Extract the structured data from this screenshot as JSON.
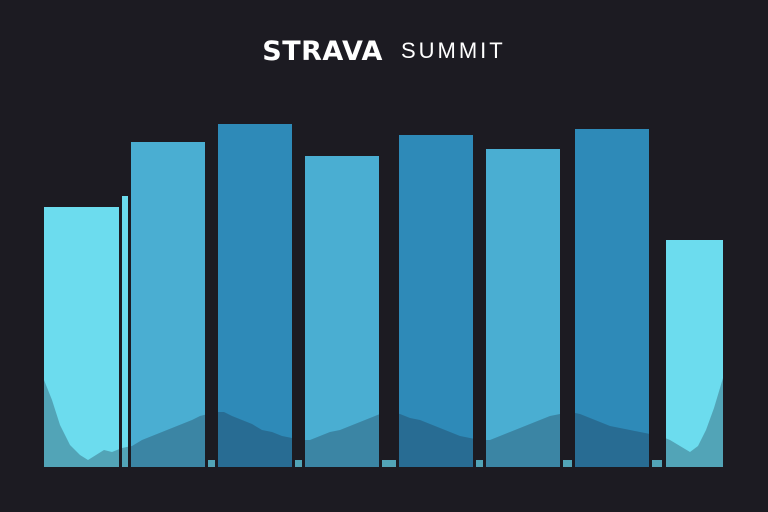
{
  "header": {
    "brand": "STRAVA",
    "product": "SUMMIT"
  },
  "colors": {
    "background": "#1c1b22",
    "light_cyan": "#6cdcee",
    "medium_blue": "#4aaed2",
    "dark_blue": "#2e8ab8",
    "mountain_overlay": "#a8d4e6"
  }
}
